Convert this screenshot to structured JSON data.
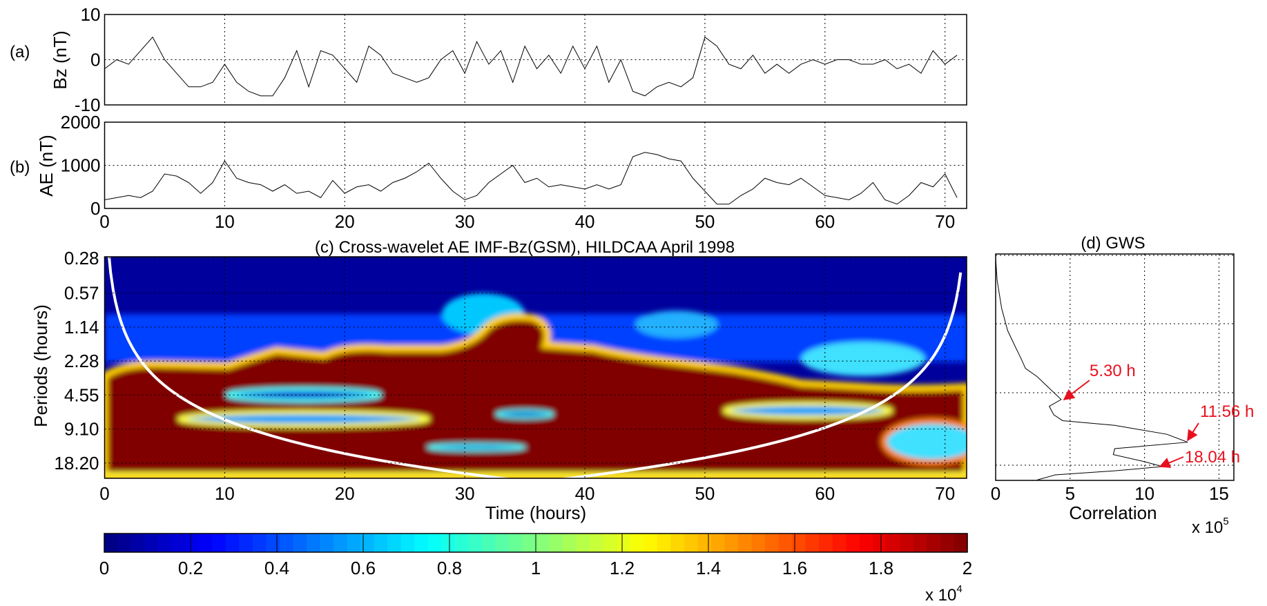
{
  "chart_data": [
    {
      "panel_label": "(a)",
      "type": "line",
      "ylabel": "Bz (nT)",
      "xlim": [
        0,
        71.8
      ],
      "ylim": [
        -10,
        10
      ],
      "yticks": [
        "-10",
        "0",
        "10"
      ],
      "grid": true,
      "line_color": "#000000",
      "x": [
        0,
        1,
        2,
        3,
        4,
        5,
        6,
        7,
        8,
        9,
        10,
        11,
        12,
        13,
        14,
        15,
        16,
        17,
        18,
        19,
        20,
        21,
        22,
        23,
        24,
        25,
        26,
        27,
        28,
        29,
        30,
        31,
        32,
        33,
        34,
        35,
        36,
        37,
        38,
        39,
        40,
        41,
        42,
        43,
        44,
        45,
        46,
        47,
        48,
        49,
        50,
        51,
        52,
        53,
        54,
        55,
        56,
        57,
        58,
        59,
        60,
        61,
        62,
        63,
        64,
        65,
        66,
        67,
        68,
        69,
        70,
        71
      ],
      "values": [
        -2,
        0,
        -1,
        2,
        5,
        0,
        -3,
        -6,
        -6,
        -5,
        -1,
        -5,
        -7,
        -8,
        -8,
        -4,
        2,
        -6,
        2,
        1,
        -2,
        -5,
        3,
        1,
        -3,
        -4,
        -5,
        -4,
        0,
        2,
        -3,
        4,
        -1,
        2,
        -5,
        3,
        -2,
        1,
        -3,
        3,
        -2,
        3,
        -5,
        0,
        -7,
        -8,
        -6,
        -5,
        -6,
        -4,
        5,
        3,
        -1,
        -2,
        1,
        -3,
        -1,
        -3,
        -1,
        0,
        -1,
        0,
        0,
        -1,
        -1,
        0,
        -2,
        -1,
        -3,
        2,
        -1,
        1
      ]
    },
    {
      "panel_label": "(b)",
      "type": "line",
      "ylabel": "AE (nT)",
      "xlim": [
        0,
        71.8
      ],
      "ylim": [
        0,
        2000
      ],
      "yticks": [
        "0",
        "1000",
        "2000"
      ],
      "xticks": [
        "0",
        "10",
        "20",
        "30",
        "40",
        "50",
        "60",
        "70"
      ],
      "grid": true,
      "line_color": "#000000",
      "x": [
        0,
        1,
        2,
        3,
        4,
        5,
        6,
        7,
        8,
        9,
        10,
        11,
        12,
        13,
        14,
        15,
        16,
        17,
        18,
        19,
        20,
        21,
        22,
        23,
        24,
        25,
        26,
        27,
        28,
        29,
        30,
        31,
        32,
        33,
        34,
        35,
        36,
        37,
        38,
        39,
        40,
        41,
        42,
        43,
        44,
        45,
        46,
        47,
        48,
        49,
        50,
        51,
        52,
        53,
        54,
        55,
        56,
        57,
        58,
        59,
        60,
        61,
        62,
        63,
        64,
        65,
        66,
        67,
        68,
        69,
        70,
        71
      ],
      "values": [
        200,
        250,
        300,
        250,
        400,
        800,
        750,
        600,
        350,
        600,
        1100,
        700,
        600,
        550,
        400,
        550,
        350,
        400,
        250,
        650,
        350,
        500,
        550,
        400,
        600,
        700,
        850,
        1050,
        700,
        400,
        200,
        300,
        600,
        800,
        1000,
        600,
        700,
        500,
        550,
        500,
        450,
        550,
        450,
        550,
        1200,
        1300,
        1250,
        1150,
        1100,
        700,
        400,
        100,
        100,
        300,
        450,
        700,
        600,
        550,
        700,
        500,
        300,
        250,
        200,
        350,
        600,
        200,
        100,
        300,
        600,
        500,
        800,
        250
      ]
    },
    {
      "panel_label": "(c)",
      "type": "heatmap",
      "title": "(c) Cross-wavelet  AE IMF-Bz(GSM), HILDCAA April  1998",
      "xlabel": "Time (hours)",
      "ylabel": "Periods (hours)",
      "xlim": [
        0,
        71.8
      ],
      "yscale": "log2",
      "yticks": [
        "0.28",
        "0.57",
        "1.14",
        "2.28",
        "4.55",
        "9.10",
        "18.20"
      ],
      "xticks": [
        "0",
        "10",
        "20",
        "30",
        "40",
        "50",
        "60",
        "70"
      ],
      "colormap": "jet",
      "cone_of_influence_color": "#ffffff",
      "colorbar": {
        "range": [
          0,
          20000
        ],
        "ticks": [
          "0",
          "0.2",
          "0.4",
          "0.6",
          "0.8",
          "1",
          "1.2",
          "1.4",
          "1.6",
          "1.8",
          "2"
        ],
        "multiplier": "x 10",
        "exponent": "4",
        "orientation": "horizontal"
      }
    },
    {
      "panel_label": "(d)",
      "type": "line",
      "title": "(d) GWS",
      "xlabel": "Correlation",
      "xlim": [
        0,
        16
      ],
      "xticks": [
        "0",
        "5",
        "10",
        "15"
      ],
      "x_multiplier": "x 10",
      "x_exponent": "5",
      "grid": true,
      "periods": [
        0.4,
        0.6,
        1,
        1.5,
        2,
        2.5,
        3,
        3.5,
        4.2,
        5.3,
        6,
        7,
        7.8,
        8.5,
        10,
        11.56,
        13,
        14.5,
        16.5,
        18.04,
        19.5,
        21,
        23
      ],
      "values": [
        0,
        0.1,
        0.4,
        0.8,
        1.3,
        1.7,
        2.0,
        2.8,
        3.5,
        4.4,
        3.6,
        3.9,
        4.5,
        8,
        11.5,
        12.9,
        8,
        7.9,
        10,
        11.2,
        8,
        4,
        2.8
      ],
      "annotations": [
        {
          "text": "5.30 h",
          "period": 5.3,
          "color": "#e8101e"
        },
        {
          "text": "11.56 h",
          "period": 11.56,
          "color": "#e8101e"
        },
        {
          "text": "18.04 h",
          "period": 18.04,
          "color": "#e8101e"
        }
      ]
    }
  ]
}
